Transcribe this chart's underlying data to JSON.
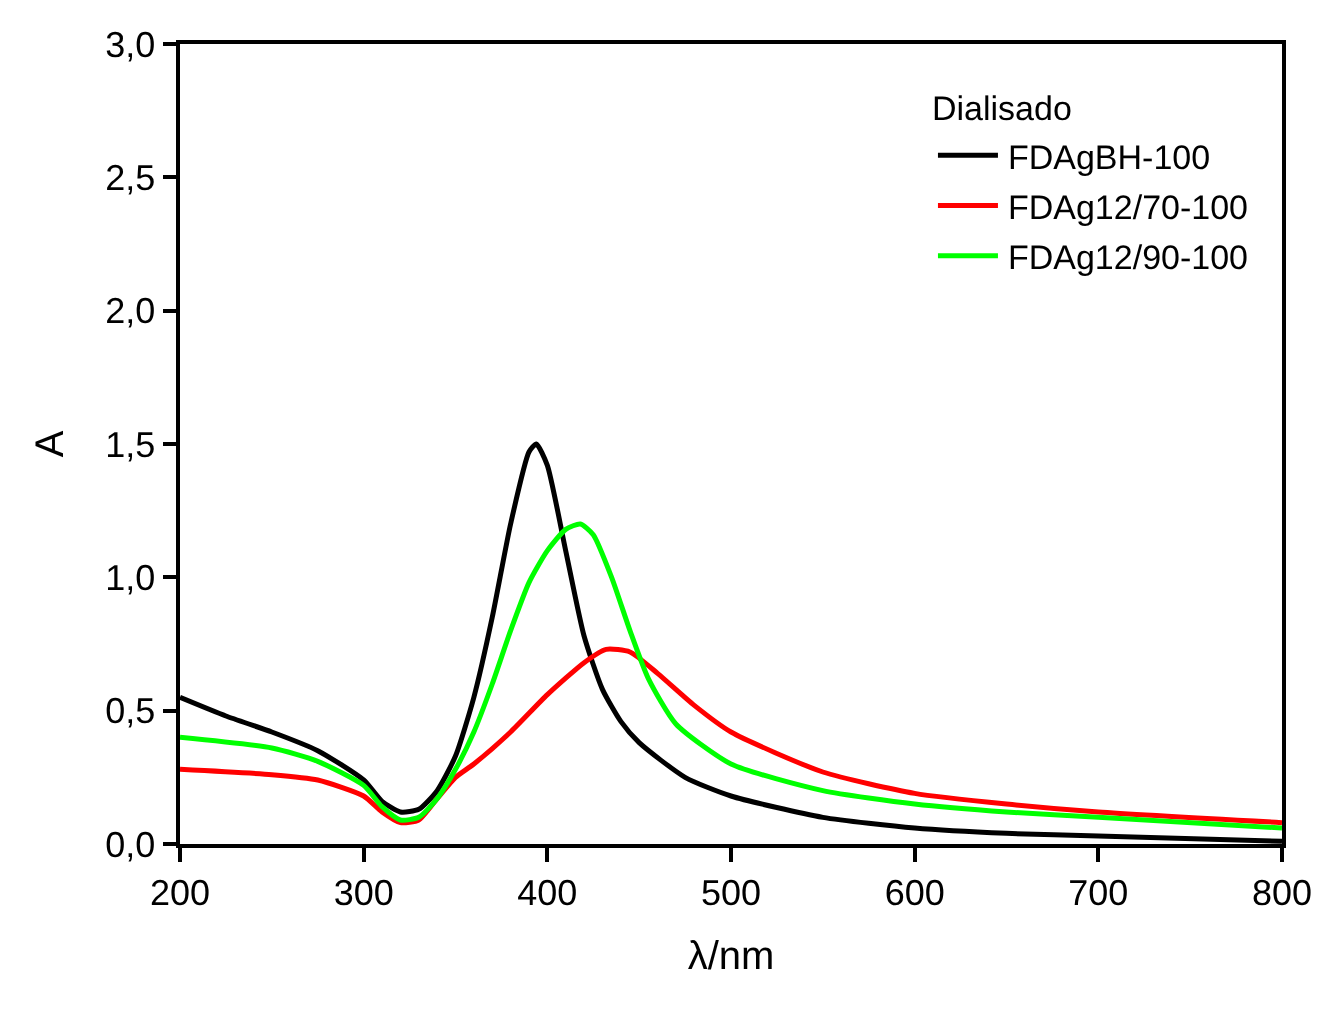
{
  "chart_data": {
    "type": "line",
    "xlabel": "λ/nm",
    "ylabel": "A",
    "legend_title": "Dialisado",
    "legend": "top right",
    "marker": "none",
    "line_style": "solid",
    "xlim": [
      200,
      800
    ],
    "xticks": [
      200,
      300,
      400,
      500,
      600,
      700,
      800
    ],
    "ylim": [
      0,
      3
    ],
    "yticks": [
      {
        "value": 0,
        "label": "0,0"
      },
      {
        "value": 0.5,
        "label": "0,5"
      },
      {
        "value": 1,
        "label": "1,0"
      },
      {
        "value": 1.5,
        "label": "1,5"
      },
      {
        "value": 2,
        "label": "2,0"
      },
      {
        "value": 2.5,
        "label": "2,5"
      },
      {
        "value": 3,
        "label": "3,0"
      }
    ],
    "series": [
      {
        "name": "FDAgBH-100",
        "color": "#000000",
        "x": [
          200,
          225,
          250,
          275,
          300,
          310,
          320,
          330,
          340,
          350,
          360,
          370,
          380,
          390,
          394,
          400,
          410,
          420,
          430,
          440,
          450,
          475,
          500,
          550,
          600,
          650,
          700,
          800
        ],
        "values": [
          0.55,
          0.48,
          0.42,
          0.35,
          0.24,
          0.16,
          0.12,
          0.13,
          0.2,
          0.33,
          0.55,
          0.85,
          1.2,
          1.47,
          1.5,
          1.42,
          1.1,
          0.78,
          0.58,
          0.46,
          0.38,
          0.25,
          0.18,
          0.1,
          0.06,
          0.04,
          0.03,
          0.01
        ]
      },
      {
        "name": "FDAg12/70-100",
        "color": "#ff0000",
        "x": [
          200,
          250,
          275,
          300,
          310,
          320,
          330,
          340,
          350,
          360,
          380,
          400,
          420,
          432,
          445,
          460,
          480,
          500,
          550,
          600,
          650,
          700,
          800
        ],
        "values": [
          0.28,
          0.26,
          0.24,
          0.18,
          0.12,
          0.08,
          0.09,
          0.17,
          0.25,
          0.3,
          0.42,
          0.56,
          0.68,
          0.73,
          0.72,
          0.64,
          0.52,
          0.42,
          0.27,
          0.19,
          0.15,
          0.12,
          0.08
        ]
      },
      {
        "name": "FDAg12/90-100",
        "color": "#00ff00",
        "x": [
          200,
          250,
          275,
          300,
          310,
          320,
          330,
          340,
          350,
          360,
          370,
          380,
          390,
          400,
          410,
          418,
          425,
          435,
          445,
          455,
          470,
          500,
          550,
          600,
          650,
          700,
          800
        ],
        "values": [
          0.4,
          0.36,
          0.31,
          0.22,
          0.14,
          0.09,
          0.1,
          0.17,
          0.28,
          0.42,
          0.6,
          0.8,
          0.98,
          1.1,
          1.18,
          1.2,
          1.16,
          1.0,
          0.8,
          0.62,
          0.45,
          0.3,
          0.2,
          0.15,
          0.12,
          0.1,
          0.06
        ]
      }
    ]
  }
}
